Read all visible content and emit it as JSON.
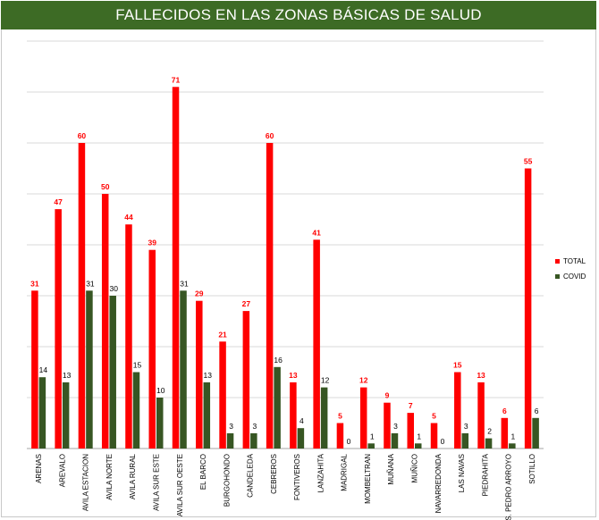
{
  "chart_data": {
    "type": "bar",
    "title": "FALLECIDOS EN LAS ZONAS BÁSICAS DE SALUD",
    "xlabel": "",
    "ylabel": "",
    "ylim": [
      0,
      80
    ],
    "grid": true,
    "legend_position": "right",
    "categories": [
      "ARENAS",
      "AREVALO",
      "AVILA ESTACION",
      "AVILA NORTE",
      "AVILA RURAL",
      "AVILA SUR ESTE",
      "AVILA SUR OESTE",
      "EL BARCO",
      "BURGOHONDO",
      "CANDELEDA",
      "CEBREROS",
      "FONTIVEROS",
      "LANZAHITA",
      "MADRIGAL",
      "MOMBELTRAN",
      "MUÑANA",
      "MUÑICO",
      "NAVARREDONDA",
      "LAS NAVAS",
      "PIEDRAHITA",
      "S. PEDRO ARROYO",
      "SOTILLO"
    ],
    "series": [
      {
        "name": "TOTAL",
        "color": "#ff0000",
        "values": [
          31,
          47,
          60,
          50,
          44,
          39,
          71,
          29,
          21,
          27,
          60,
          13,
          41,
          5,
          12,
          9,
          7,
          5,
          15,
          13,
          6,
          55
        ]
      },
      {
        "name": "COVID",
        "color": "#375623",
        "values": [
          14,
          13,
          31,
          30,
          15,
          10,
          31,
          13,
          3,
          3,
          16,
          4,
          12,
          0,
          1,
          3,
          1,
          0,
          3,
          2,
          1,
          6
        ]
      }
    ]
  }
}
